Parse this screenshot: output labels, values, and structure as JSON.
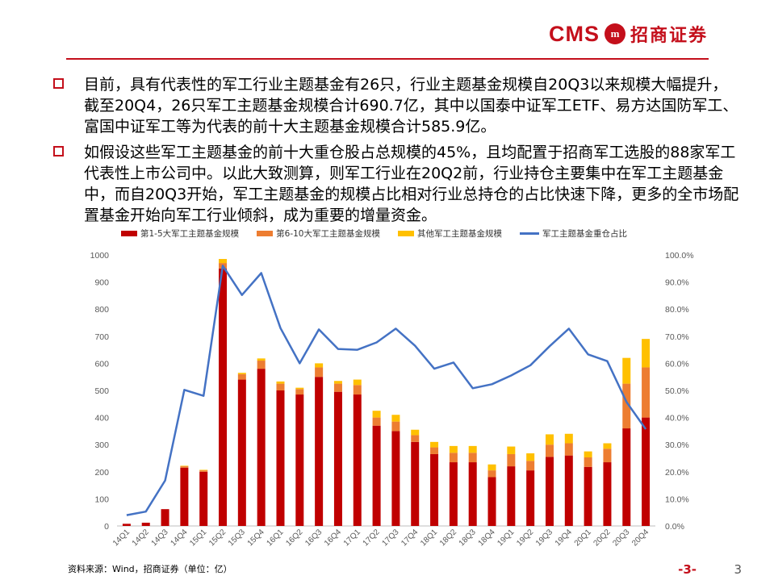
{
  "logo": {
    "cms": "CMS",
    "mark": "m",
    "cn": "招商证券"
  },
  "bullets": [
    "目前，具有代表性的军工行业主题基金有26只，行业主题基金规模自20Q3以来规模大幅提升，截至20Q4，26只军工主题基金规模合计690.7亿，其中以国泰中证军工ETF、易方达国防军工、富国中证军工等为代表的前十大主题基金规模合计585.9亿。",
    "如假设这些军工主题基金的前十大重仓股占总规模的45%，且均配置于招商军工选股的88家军工代表性上市公司中。以此大致测算，则军工行业在20Q2前，行业持仓主要集中在军工主题基金中，而自20Q3开始，军工主题基金的规模占比相对行业总持仓的占比快速下降，更多的全市场配置基金开始向军工行业倾斜，成为重要的增量资金。"
  ],
  "chart_data": {
    "type": "bar",
    "stacked": true,
    "categories": [
      "14Q1",
      "14Q2",
      "14Q3",
      "14Q4",
      "15Q1",
      "15Q2",
      "15Q3",
      "15Q4",
      "16Q1",
      "16Q2",
      "16Q3",
      "16Q4",
      "17Q1",
      "17Q2",
      "17Q3",
      "17Q4",
      "18Q1",
      "18Q2",
      "18Q3",
      "18Q4",
      "19Q1",
      "19Q2",
      "19Q3",
      "19Q4",
      "20Q1",
      "20Q2",
      "20Q3",
      "20Q4"
    ],
    "series": [
      {
        "name": "第1-5大军工主题基金规模",
        "color": "#c00000",
        "values": [
          8,
          12,
          62,
          215,
          200,
          950,
          540,
          580,
          500,
          485,
          550,
          495,
          485,
          370,
          350,
          310,
          265,
          235,
          235,
          180,
          220,
          205,
          255,
          260,
          218,
          235,
          360,
          400
        ]
      },
      {
        "name": "第6-10大军工主题基金规模",
        "color": "#ed7d31",
        "values": [
          0,
          0,
          0,
          5,
          5,
          20,
          20,
          30,
          25,
          20,
          35,
          30,
          35,
          30,
          35,
          25,
          25,
          35,
          35,
          25,
          45,
          35,
          45,
          45,
          35,
          50,
          165,
          185
        ]
      },
      {
        "name": "其他军工主题基金规模",
        "color": "#ffc000",
        "values": [
          0,
          0,
          0,
          2,
          2,
          15,
          5,
          8,
          8,
          5,
          15,
          10,
          20,
          25,
          25,
          20,
          20,
          25,
          25,
          22,
          28,
          28,
          38,
          35,
          22,
          20,
          95,
          105
        ]
      }
    ],
    "line": {
      "name": "军工主题基金重仓占比",
      "color": "#4472c4",
      "values": [
        4.0,
        5.3,
        16.8,
        50.2,
        48.0,
        96.0,
        85.2,
        93.3,
        73.0,
        60.0,
        72.5,
        65.3,
        65.0,
        67.7,
        72.8,
        66.5,
        58.0,
        60.3,
        50.8,
        52.3,
        55.5,
        59.3,
        66.3,
        72.8,
        63.3,
        60.8,
        45.7,
        35.7
      ]
    },
    "ylim": [
      0,
      1000
    ],
    "yticks": [
      "0",
      "100",
      "200",
      "300",
      "400",
      "500",
      "600",
      "700",
      "800",
      "900",
      "1000"
    ],
    "y2lim": [
      0,
      100
    ],
    "y2ticks": [
      "0.0%",
      "10.0%",
      "20.0%",
      "30.0%",
      "40.0%",
      "50.0%",
      "60.0%",
      "70.0%",
      "80.0%",
      "90.0%",
      "100.0%"
    ],
    "legend": "top",
    "grid": false
  },
  "source": "资料来源：Wind，招商证券（单位：亿）",
  "page_label": "-3-",
  "page_number": "3"
}
